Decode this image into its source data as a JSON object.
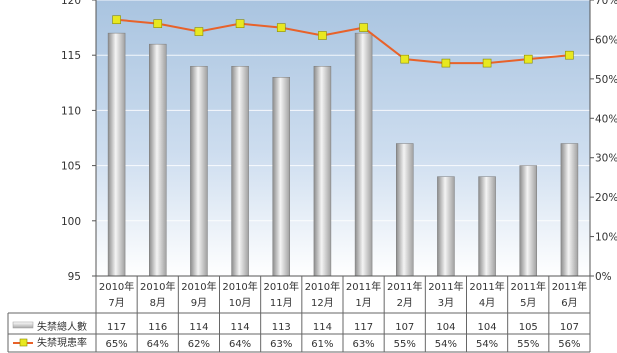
{
  "chart_data": {
    "type": "bar",
    "categories": [
      {
        "year": "2010年",
        "month": "7月"
      },
      {
        "year": "2010年",
        "month": "8月"
      },
      {
        "year": "2010年",
        "month": "9月"
      },
      {
        "year": "2010年",
        "month": "10月"
      },
      {
        "year": "2010年",
        "month": "11月"
      },
      {
        "year": "2010年",
        "month": "12月"
      },
      {
        "year": "2011年",
        "month": "1月"
      },
      {
        "year": "2011年",
        "month": "2月"
      },
      {
        "year": "2011年",
        "month": "3月"
      },
      {
        "year": "2011年",
        "month": "4月"
      },
      {
        "year": "2011年",
        "month": "5月"
      },
      {
        "year": "2011年",
        "month": "6月"
      }
    ],
    "series": [
      {
        "name": "失禁總人數",
        "type": "bar",
        "axis": "left",
        "values": [
          117,
          116,
          114,
          114,
          113,
          114,
          117,
          107,
          104,
          104,
          105,
          107
        ],
        "labels": [
          "117",
          "116",
          "114",
          "114",
          "113",
          "114",
          "117",
          "107",
          "104",
          "104",
          "105",
          "107"
        ],
        "color": "#b8b8b8"
      },
      {
        "name": "失禁現患率",
        "type": "line",
        "axis": "right",
        "values": [
          65,
          64,
          62,
          64,
          63,
          61,
          63,
          55,
          54,
          54,
          55,
          56
        ],
        "labels": [
          "65%",
          "64%",
          "62%",
          "64%",
          "63%",
          "61%",
          "63%",
          "55%",
          "54%",
          "54%",
          "55%",
          "56%"
        ],
        "color": "#e8622a",
        "marker_color": "#e8e820"
      }
    ],
    "y_left": {
      "min": 95,
      "max": 120,
      "ticks": [
        "95",
        "100",
        "105",
        "110",
        "115",
        "120"
      ]
    },
    "y_right": {
      "min": 0,
      "max": 70,
      "ticks": [
        "0%",
        "10%",
        "20%",
        "30%",
        "40%",
        "50%",
        "60%",
        "70%"
      ]
    },
    "grid": true,
    "legend": "bottom-table",
    "background": {
      "top": "#a9c4e0",
      "bottom": "#ffffff"
    },
    "title": "",
    "xlabel": "",
    "ylabel": ""
  }
}
